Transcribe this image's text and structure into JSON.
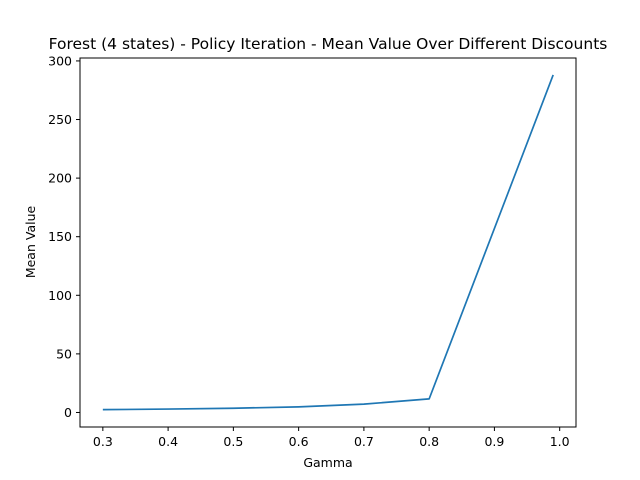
{
  "chart_data": {
    "type": "line",
    "title": "Forest (4 states) - Policy Iteration - Mean Value Over Different Discounts",
    "xlabel": "Gamma",
    "ylabel": "Mean Value",
    "xlim": [
      0.265,
      1.025
    ],
    "ylim": [
      -12.4,
      302.5
    ],
    "xticks": [
      0.3,
      0.4,
      0.5,
      0.6,
      0.7,
      0.8,
      0.9,
      1.0
    ],
    "xtick_labels": [
      "0.3",
      "0.4",
      "0.5",
      "0.6",
      "0.7",
      "0.8",
      "0.9",
      "1.0"
    ],
    "yticks": [
      0,
      50,
      100,
      150,
      200,
      250,
      300
    ],
    "ytick_labels": [
      "0",
      "50",
      "100",
      "150",
      "200",
      "250",
      "300"
    ],
    "grid": false,
    "legend": "none",
    "series": [
      {
        "color": "#1f77b4",
        "x": [
          0.3,
          0.4,
          0.5,
          0.6,
          0.7,
          0.8,
          0.99
        ],
        "y": [
          2.4,
          2.9,
          3.6,
          4.8,
          7.1,
          11.6,
          288.0
        ]
      }
    ]
  }
}
